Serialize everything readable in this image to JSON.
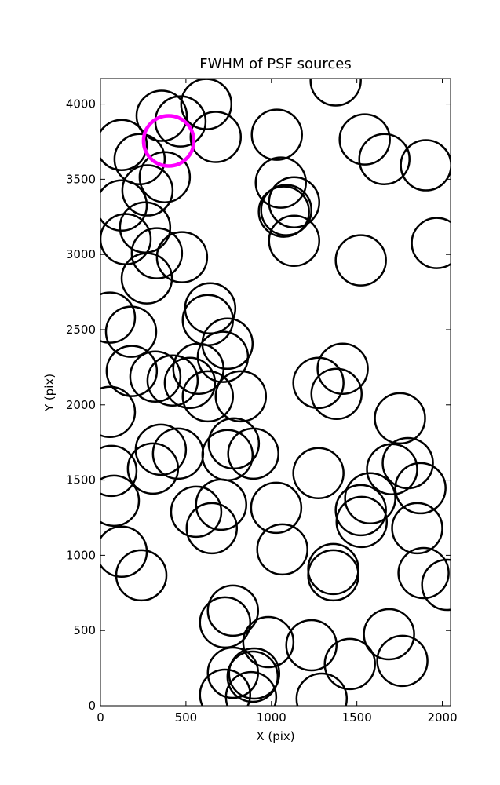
{
  "chart_data": {
    "type": "scatter",
    "title": "FWHM of PSF sources",
    "x_label": "X (pix)",
    "y_label": "Y (pix)",
    "xlim": [
      0,
      2048
    ],
    "ylim": [
      0,
      4170
    ],
    "xticks": [
      0,
      500,
      1000,
      1500,
      2000
    ],
    "yticks": [
      0,
      500,
      1000,
      1500,
      2000,
      2500,
      3000,
      3500,
      4000
    ],
    "series": [
      {
        "color": "#000000",
        "x": [
          358,
          468,
          619,
          674,
          124,
          229,
          376,
          275,
          124,
          261,
          147,
          330,
          477,
          271,
          1376,
          1032,
          1546,
          1661,
          1904,
          1055,
          1133,
          1073,
          1087,
          1133,
          1523,
          1968,
          55,
          179,
          642,
          628,
          743,
          716,
          183,
          321,
          422,
          573,
          523,
          628,
          821,
          55,
          1275,
          1417,
          1381,
          1752,
          64,
          78,
          353,
          454,
          307,
          780,
          743,
          894,
          1275,
          1706,
          1798,
          1872,
          1578,
          1523,
          1528,
          1853,
          1028,
          706,
          560,
          651,
          1064,
          124,
          239,
          1362,
          1362,
          1890,
          2028,
          775,
          729,
          982,
          1234,
          1688,
          1766,
          1459,
          775,
          899,
          890,
          1294,
          729,
          881
        ],
        "y": [
          3922,
          3885,
          4000,
          3781,
          3728,
          3634,
          3514,
          3426,
          3326,
          3180,
          3102,
          3008,
          2982,
          2841,
          4157,
          3796,
          3765,
          3634,
          3593,
          3478,
          3347,
          3285,
          3295,
          3091,
          2961,
          3076,
          2580,
          2486,
          2642,
          2564,
          2407,
          2319,
          2225,
          2188,
          2162,
          2240,
          2146,
          2057,
          2057,
          1953,
          2146,
          2240,
          2073,
          1911,
          1561,
          1363,
          1702,
          1676,
          1577,
          1744,
          1666,
          1676,
          1546,
          1572,
          1613,
          1446,
          1379,
          1300,
          1222,
          1180,
          1316,
          1337,
          1290,
          1180,
          1039,
          1024,
          867,
          909,
          867,
          882,
          804,
          632,
          554,
          423,
          402,
          475,
          298,
          277,
          219,
          214,
          193,
          47,
          73,
          57
        ]
      },
      {
        "color": "#ff00ff",
        "x": [
          399
        ],
        "y": [
          3755
        ]
      }
    ]
  }
}
